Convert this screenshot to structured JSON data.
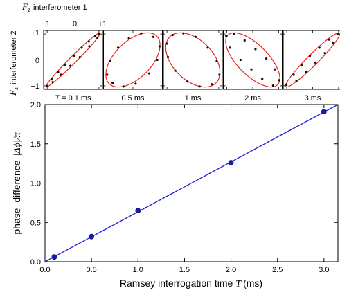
{
  "chart_data": [
    {
      "type": "scatter",
      "title": "",
      "x_axis_title": "F",
      "x_axis_title_subscript": "z",
      "x_axis_title_suffix": "interferometer 1",
      "y_axis_title": "F",
      "y_axis_title_subscript": "z",
      "y_axis_title_suffix": "interferometer 2",
      "x_tick_labels": [
        "−1",
        "0",
        "+1"
      ],
      "y_tick_labels": [
        "+1",
        "0",
        "−1"
      ],
      "xlim": [
        -1,
        1
      ],
      "ylim": [
        -1,
        1
      ],
      "fit_color": "#e8231e",
      "point_color": "#111111",
      "panels": [
        {
          "label": "T = 0.1 ms",
          "label_prefix": "T",
          "label_value": "= 0.1 ms",
          "phi_deg": 10,
          "points": [
            [
              -0.95,
              -0.96
            ],
            [
              -0.78,
              -0.72
            ],
            [
              -0.55,
              -0.45
            ],
            [
              -0.3,
              -0.18
            ],
            [
              0.05,
              0.15
            ],
            [
              0.32,
              0.45
            ],
            [
              0.58,
              0.68
            ],
            [
              0.82,
              0.88
            ],
            [
              0.96,
              0.97
            ],
            [
              0.9,
              0.82
            ],
            [
              0.6,
              0.5
            ],
            [
              0.25,
              0.1
            ],
            [
              -0.1,
              -0.22
            ],
            [
              -0.45,
              -0.55
            ],
            [
              -0.75,
              -0.82
            ]
          ]
        },
        {
          "label": "0.5 ms",
          "phi_deg": 57,
          "points": [
            [
              -0.95,
              -0.55
            ],
            [
              -0.85,
              -0.05
            ],
            [
              -0.55,
              0.45
            ],
            [
              -0.15,
              0.8
            ],
            [
              0.3,
              0.98
            ],
            [
              0.75,
              0.85
            ],
            [
              0.98,
              0.5
            ],
            [
              0.9,
              0.0
            ],
            [
              0.6,
              -0.5
            ],
            [
              0.1,
              -0.88
            ],
            [
              -0.35,
              -0.98
            ],
            [
              -0.75,
              -0.85
            ]
          ]
        },
        {
          "label": "1 ms",
          "phi_deg": 117,
          "points": [
            [
              -0.95,
              0.6
            ],
            [
              -0.75,
              0.92
            ],
            [
              -0.35,
              0.98
            ],
            [
              0.1,
              0.85
            ],
            [
              0.55,
              0.45
            ],
            [
              0.88,
              -0.05
            ],
            [
              0.98,
              -0.55
            ],
            [
              0.7,
              -0.9
            ],
            [
              0.25,
              -0.98
            ],
            [
              -0.2,
              -0.8
            ],
            [
              -0.65,
              -0.4
            ],
            [
              -0.92,
              0.1
            ]
          ]
        },
        {
          "label": "2 ms",
          "phi_deg": 227,
          "points": [
            [
              -0.98,
              0.88
            ],
            [
              -0.7,
              0.95
            ],
            [
              -0.3,
              0.72
            ],
            [
              0.1,
              0.4
            ],
            [
              0.5,
              0.05
            ],
            [
              0.82,
              -0.35
            ],
            [
              0.97,
              -0.75
            ],
            [
              0.75,
              -0.95
            ],
            [
              0.35,
              -0.7
            ],
            [
              -0.05,
              -0.35
            ],
            [
              -0.45,
              0.0
            ],
            [
              -0.85,
              0.45
            ]
          ]
        },
        {
          "label": "3 ms",
          "phi_deg": 344,
          "points": [
            [
              -0.97,
              -0.92
            ],
            [
              -0.7,
              -0.55
            ],
            [
              -0.4,
              -0.2
            ],
            [
              -0.1,
              0.15
            ],
            [
              0.25,
              0.45
            ],
            [
              0.6,
              0.75
            ],
            [
              0.92,
              0.95
            ],
            [
              0.75,
              0.62
            ],
            [
              0.45,
              0.25
            ],
            [
              0.1,
              -0.1
            ],
            [
              -0.25,
              -0.45
            ],
            [
              -0.6,
              -0.78
            ]
          ]
        }
      ]
    },
    {
      "type": "scatter",
      "title": "",
      "xlabel": "Ramsey interrogation time",
      "xlabel_var": "T",
      "xlabel_unit": "(ms)",
      "ylabel": "phase  difference",
      "ylabel_math": "|Δϕ|/π",
      "xlim": [
        0,
        3.15
      ],
      "ylim": [
        0,
        2.0
      ],
      "x_ticks": [
        "0.0",
        "0.5",
        "1.0",
        "1.5",
        "2.0",
        "2.5",
        "3.0"
      ],
      "y_ticks": [
        "0.0",
        "0.5",
        "1.0",
        "1.5",
        "2.0"
      ],
      "grid": false,
      "series": [
        {
          "kind": "points",
          "color": "#1a1aa6",
          "x": [
            0.1,
            0.5,
            1.0,
            2.0,
            3.0
          ],
          "y": [
            0.06,
            0.32,
            0.65,
            1.26,
            1.91
          ]
        },
        {
          "kind": "fit-line",
          "color": "#1c1cd6",
          "x": [
            0,
            3.15
          ],
          "y": [
            0.0,
            2.0
          ]
        }
      ]
    }
  ]
}
